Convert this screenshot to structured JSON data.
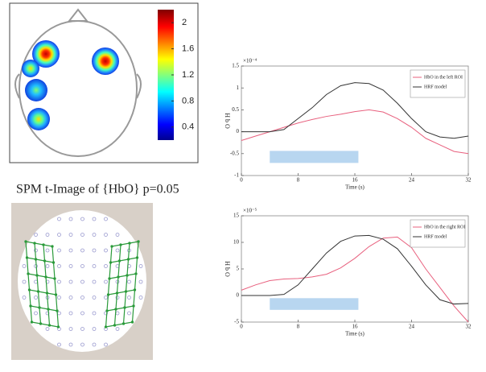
{
  "tmap": {
    "caption": "SPM t-Image of {HbO} p=0.05",
    "clim": [
      0.2,
      2.2
    ],
    "colorbar_ticks": [
      2,
      1.6,
      1.2,
      0.8,
      0.4
    ]
  },
  "chart_data": [
    {
      "type": "line",
      "exponent_label": "×10⁻⁴",
      "ylabel": "H b O",
      "xlabel": "Time (s)",
      "xlim": [
        0,
        32
      ],
      "xticks": [
        0,
        8,
        16,
        24,
        32
      ],
      "ylim": [
        -1,
        1.5
      ],
      "yticks": [
        1.5,
        1,
        0.5,
        0,
        -0.5,
        -1
      ],
      "x": [
        0,
        2,
        4,
        6,
        8,
        10,
        12,
        14,
        16,
        18,
        20,
        22,
        24,
        26,
        28,
        30,
        32
      ],
      "series": [
        {
          "name": "HbO in the left ROI",
          "color": "#e8607e",
          "values": [
            -0.2,
            -0.1,
            0,
            0.1,
            0.2,
            0.28,
            0.35,
            0.4,
            0.46,
            0.5,
            0.45,
            0.3,
            0.1,
            -0.15,
            -0.3,
            -0.45,
            -0.5
          ]
        },
        {
          "name": "HRF model",
          "color": "#333333",
          "values": [
            0,
            0,
            0,
            0.05,
            0.3,
            0.55,
            0.85,
            1.05,
            1.12,
            1.1,
            0.95,
            0.65,
            0.3,
            0,
            -0.12,
            -0.15,
            -0.1
          ]
        }
      ],
      "stimulus": {
        "x": [
          4,
          16.5
        ],
        "color": "#b8d6f0"
      }
    },
    {
      "type": "line",
      "exponent_label": "×10⁻⁵",
      "ylabel": "H b O",
      "xlabel": "Time (s)",
      "xlim": [
        0,
        32
      ],
      "xticks": [
        0,
        8,
        16,
        24,
        32
      ],
      "ylim": [
        -5,
        15
      ],
      "yticks": [
        15,
        10,
        5,
        0,
        -5
      ],
      "x": [
        0,
        2,
        4,
        6,
        8,
        10,
        12,
        14,
        16,
        18,
        20,
        22,
        24,
        26,
        28,
        30,
        32
      ],
      "series": [
        {
          "name": "HbO in the right ROI",
          "color": "#e8607e",
          "values": [
            1,
            2,
            2.8,
            3.1,
            3.2,
            3.5,
            4,
            5.2,
            7,
            9.2,
            10.8,
            11,
            9,
            5,
            1.5,
            -2,
            -5
          ]
        },
        {
          "name": "HRF model",
          "color": "#333333",
          "values": [
            0,
            0,
            0,
            0.2,
            2,
            5,
            8,
            10.2,
            11.2,
            11.3,
            10.6,
            8.8,
            5.5,
            2,
            -0.8,
            -1.6,
            -1.5
          ]
        }
      ],
      "stimulus": {
        "x": [
          4,
          16.5
        ],
        "color": "#b8d6f0"
      }
    }
  ]
}
